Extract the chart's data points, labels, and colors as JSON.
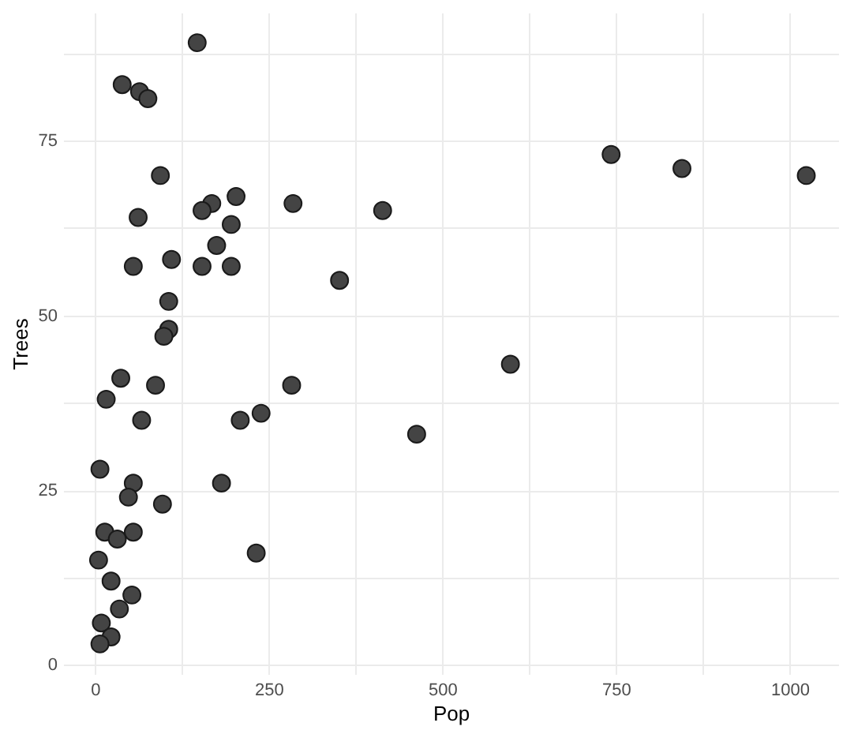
{
  "chart_data": {
    "type": "scatter",
    "xlabel": "Pop",
    "ylabel": "Trees",
    "x": [
      147,
      39,
      64,
      76,
      94,
      62,
      168,
      154,
      203,
      285,
      414,
      196,
      175,
      55,
      110,
      154,
      196,
      352,
      106,
      106,
      99,
      37,
      87,
      283,
      16,
      239,
      209,
      67,
      463,
      7,
      55,
      182,
      48,
      97,
      14,
      55,
      32,
      232,
      5,
      23,
      53,
      35,
      9,
      23,
      7,
      743,
      845,
      1024,
      598
    ],
    "series": [
      {
        "color": "#444444",
        "values": [
          89,
          83,
          82,
          81,
          70,
          64,
          66,
          65,
          67,
          66,
          65,
          63,
          60,
          57,
          58,
          57,
          57,
          55,
          52,
          48,
          47,
          41,
          40,
          40,
          38,
          36,
          35,
          35,
          33,
          28,
          26,
          26,
          24,
          23,
          19,
          19,
          18,
          16,
          15,
          12,
          10,
          8,
          6,
          4,
          3,
          73,
          71,
          70,
          43
        ]
      }
    ],
    "xlim": [
      -46,
      1070
    ],
    "ylim": [
      -1.3,
      93.3
    ],
    "xticks": [
      0,
      {
        "value": 125,
        "label": null
      },
      250,
      {
        "value": 375,
        "label": null
      },
      500,
      {
        "value": 625,
        "label": null
      },
      750,
      {
        "value": 875,
        "label": null
      },
      1000
    ],
    "yticks": [
      0,
      {
        "value": 12.5,
        "label": null
      },
      25,
      {
        "value": 37.5,
        "label": null
      },
      50,
      {
        "value": 62.5,
        "label": null
      },
      75,
      {
        "value": 87.5,
        "label": null
      }
    ],
    "grid": true,
    "marker": "circle"
  }
}
